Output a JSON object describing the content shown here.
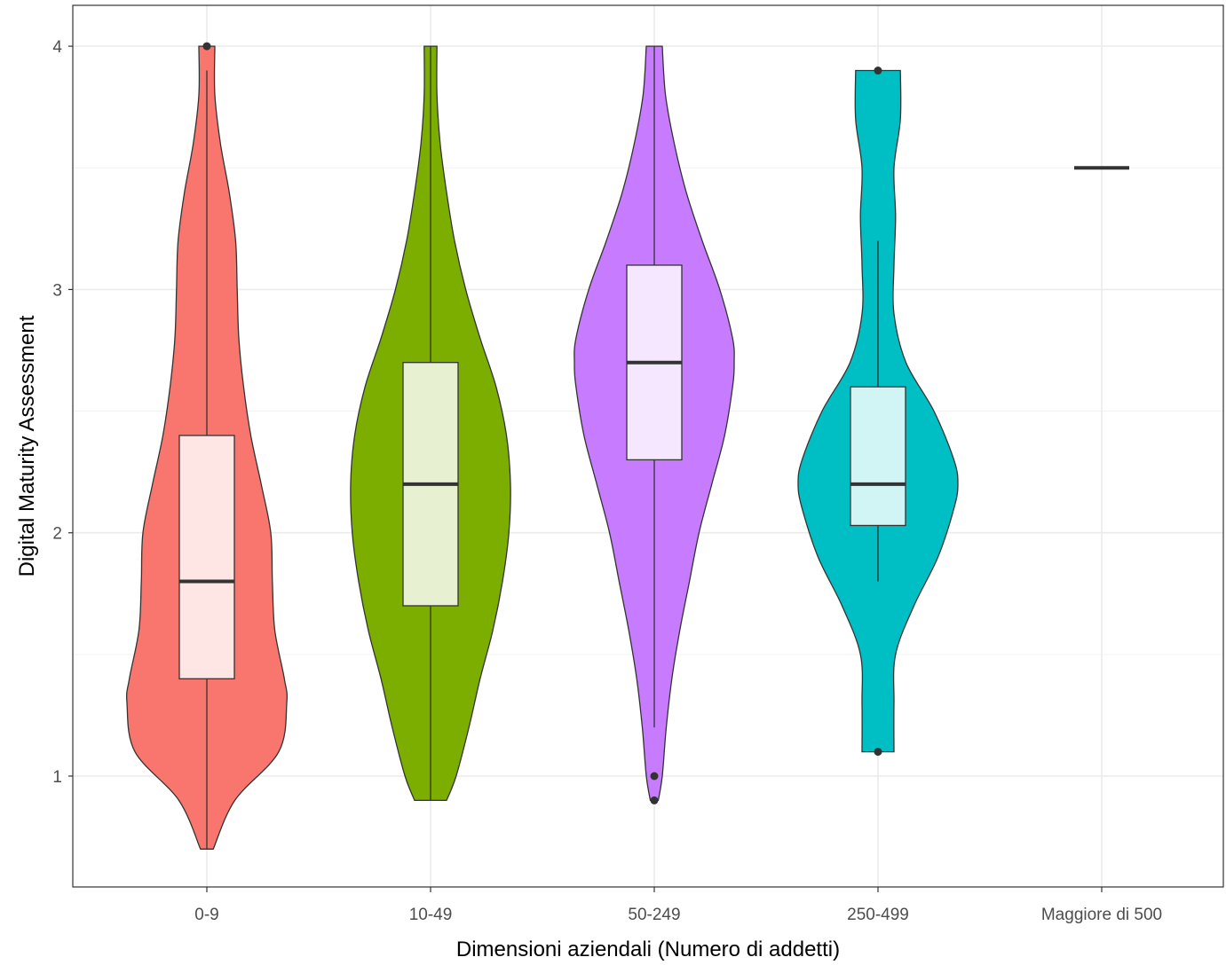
{
  "chart_data": {
    "type": "violin",
    "xlabel": "Dimensioni aziendali (Numero di addetti)",
    "ylabel": "Digital Maturity Assessment",
    "categories": [
      "0-9",
      "10-49",
      "50-249",
      "250-499",
      "Maggiore di 500"
    ],
    "ylim": [
      0.55,
      4.2
    ],
    "yticks": [
      1,
      2,
      3,
      4
    ],
    "grid": true,
    "legend": "none",
    "colors": [
      "#F8766D",
      "#7CAE00",
      "#C77CFF",
      "#00BFC4",
      "#E76BF3"
    ],
    "series": [
      {
        "category": "0-9",
        "violin": {
          "y": [
            0.7,
            0.9,
            1.1,
            1.3,
            1.4,
            1.6,
            1.8,
            2.0,
            2.2,
            2.4,
            2.6,
            2.8,
            3.0,
            3.2,
            3.4,
            3.6,
            3.8,
            4.0
          ],
          "width": [
            0.08,
            0.35,
            0.9,
            1.0,
            0.97,
            0.85,
            0.82,
            0.8,
            0.68,
            0.55,
            0.46,
            0.4,
            0.38,
            0.36,
            0.28,
            0.17,
            0.1,
            0.1
          ]
        },
        "box": {
          "q1": 1.4,
          "median": 1.8,
          "q3": 2.4,
          "whisker_low": 0.7,
          "whisker_high": 3.9
        },
        "outliers": [
          4.0
        ]
      },
      {
        "category": "10-49",
        "violin": {
          "y": [
            0.9,
            1.0,
            1.2,
            1.4,
            1.6,
            1.8,
            2.0,
            2.2,
            2.4,
            2.6,
            2.8,
            3.0,
            3.2,
            3.4,
            3.6,
            3.8,
            4.0
          ],
          "width": [
            0.2,
            0.32,
            0.48,
            0.62,
            0.78,
            0.9,
            0.98,
            1.0,
            0.95,
            0.82,
            0.62,
            0.44,
            0.3,
            0.2,
            0.12,
            0.08,
            0.08
          ]
        },
        "box": {
          "q1": 1.7,
          "median": 2.2,
          "q3": 2.7,
          "whisker_low": 0.9,
          "whisker_high": 4.0
        },
        "outliers": []
      },
      {
        "category": "50-249",
        "violin": {
          "y": [
            0.9,
            1.0,
            1.2,
            1.4,
            1.6,
            1.8,
            2.0,
            2.2,
            2.4,
            2.6,
            2.7,
            2.8,
            3.0,
            3.2,
            3.4,
            3.6,
            3.8,
            4.0
          ],
          "width": [
            0.05,
            0.1,
            0.15,
            0.22,
            0.32,
            0.44,
            0.56,
            0.72,
            0.88,
            0.98,
            1.0,
            0.98,
            0.82,
            0.6,
            0.4,
            0.25,
            0.14,
            0.1
          ]
        },
        "box": {
          "q1": 2.3,
          "median": 2.7,
          "q3": 3.1,
          "whisker_low": 1.2,
          "whisker_high": 4.0
        },
        "outliers": [
          1.0,
          0.9
        ]
      },
      {
        "category": "250-499",
        "violin": {
          "y": [
            1.1,
            1.3,
            1.5,
            1.7,
            1.9,
            2.1,
            2.2,
            2.3,
            2.5,
            2.7,
            2.9,
            3.1,
            3.3,
            3.5,
            3.7,
            3.9
          ],
          "width": [
            0.2,
            0.2,
            0.22,
            0.45,
            0.75,
            0.95,
            1.0,
            0.95,
            0.7,
            0.35,
            0.2,
            0.2,
            0.22,
            0.2,
            0.28,
            0.28
          ]
        },
        "box": {
          "q1": 2.03,
          "median": 2.2,
          "q3": 2.6,
          "whisker_low": 1.8,
          "whisker_high": 3.2
        },
        "outliers": [
          3.9,
          1.1
        ]
      },
      {
        "category": "Maggiore di 500",
        "violin": null,
        "box": {
          "q1": 3.5,
          "median": 3.5,
          "q3": 3.5,
          "whisker_low": 3.5,
          "whisker_high": 3.5
        },
        "outliers": []
      }
    ]
  }
}
